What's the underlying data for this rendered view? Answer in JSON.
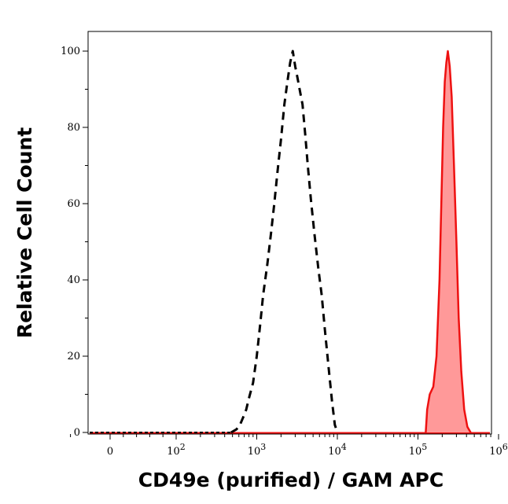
{
  "chart_data": {
    "type": "histogram",
    "xlabel": "CD49e (purified) / GAM APC",
    "ylabel": "Relative Cell Count",
    "x_scale": "biexponential (log above 10^2)",
    "ylim": [
      0,
      105
    ],
    "y_ticks": [
      0,
      20,
      40,
      60,
      80,
      100
    ],
    "x_ticks": [
      {
        "value": 0,
        "label": "0"
      },
      {
        "value": 100,
        "label": "10^2"
      },
      {
        "value": 1000,
        "label": "10^3"
      },
      {
        "value": 10000,
        "label": "10^4"
      },
      {
        "value": 100000,
        "label": "10^5"
      },
      {
        "value": 1000000,
        "label": "10^6"
      }
    ],
    "series": [
      {
        "style": "dashed",
        "color": "#000000",
        "fill": "none",
        "points": [
          [
            480,
            0
          ],
          [
            560,
            0.8
          ],
          [
            620,
            2
          ],
          [
            680,
            4
          ],
          [
            740,
            6
          ],
          [
            800,
            9
          ],
          [
            900,
            13
          ],
          [
            1000,
            20
          ],
          [
            1100,
            28
          ],
          [
            1200,
            36
          ],
          [
            1350,
            44
          ],
          [
            1500,
            52
          ],
          [
            1650,
            60
          ],
          [
            1800,
            68
          ],
          [
            2000,
            77
          ],
          [
            2200,
            86
          ],
          [
            2400,
            92
          ],
          [
            2600,
            97
          ],
          [
            2800,
            100
          ],
          [
            3000,
            96
          ],
          [
            3200,
            93
          ],
          [
            3400,
            90
          ],
          [
            3700,
            86
          ],
          [
            4000,
            78
          ],
          [
            4300,
            70
          ],
          [
            4700,
            61
          ],
          [
            5200,
            52
          ],
          [
            5800,
            43
          ],
          [
            6400,
            36
          ],
          [
            7000,
            27
          ],
          [
            7800,
            17
          ],
          [
            8600,
            8
          ],
          [
            9300,
            2
          ],
          [
            10000,
            0
          ]
        ]
      },
      {
        "style": "solid",
        "color": "#ee1111",
        "fill": "#ff9999",
        "points": [
          [
            125000,
            0
          ],
          [
            130000,
            6
          ],
          [
            140000,
            10
          ],
          [
            155000,
            12
          ],
          [
            170000,
            20
          ],
          [
            185000,
            40
          ],
          [
            195000,
            60
          ],
          [
            205000,
            80
          ],
          [
            215000,
            92
          ],
          [
            225000,
            97
          ],
          [
            235000,
            100
          ],
          [
            248000,
            96
          ],
          [
            262000,
            88
          ],
          [
            280000,
            70
          ],
          [
            300000,
            50
          ],
          [
            320000,
            30
          ],
          [
            345000,
            16
          ],
          [
            375000,
            6
          ],
          [
            410000,
            1.5
          ],
          [
            450000,
            0
          ]
        ]
      }
    ]
  }
}
